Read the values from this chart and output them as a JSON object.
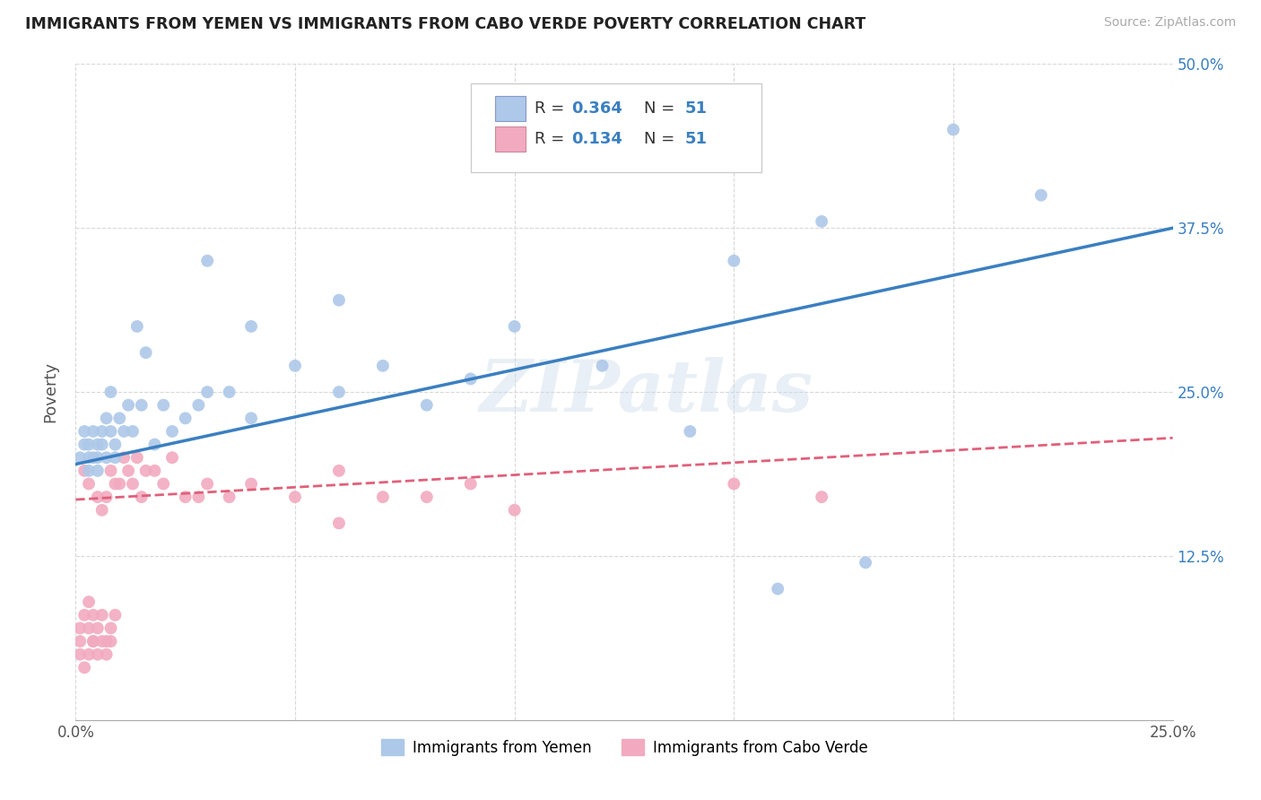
{
  "title": "IMMIGRANTS FROM YEMEN VS IMMIGRANTS FROM CABO VERDE POVERTY CORRELATION CHART",
  "source": "Source: ZipAtlas.com",
  "ylabel": "Poverty",
  "xlim": [
    0.0,
    0.25
  ],
  "ylim": [
    0.0,
    0.5
  ],
  "xticks": [
    0.0,
    0.05,
    0.1,
    0.15,
    0.2,
    0.25
  ],
  "yticks": [
    0.0,
    0.125,
    0.25,
    0.375,
    0.5
  ],
  "xtick_labels": [
    "0.0%",
    "",
    "",
    "",
    "",
    "25.0%"
  ],
  "ytick_labels_right": [
    "",
    "12.5%",
    "25.0%",
    "37.5%",
    "50.0%"
  ],
  "yemen_color": "#adc8e8",
  "cabo_color": "#f2aac0",
  "yemen_line_color": "#3a7fc1",
  "cabo_line_color": "#e0607a",
  "R_yemen": 0.364,
  "R_cabo": 0.134,
  "N": 51,
  "watermark": "ZIPatlas",
  "background_color": "#ffffff",
  "grid_color": "#d8d8d8",
  "legend_label_yemen": "Immigrants from Yemen",
  "legend_label_cabo": "Immigrants from Cabo Verde",
  "yemen_scatter_x": [
    0.001,
    0.002,
    0.002,
    0.003,
    0.003,
    0.003,
    0.004,
    0.004,
    0.005,
    0.005,
    0.005,
    0.006,
    0.006,
    0.007,
    0.007,
    0.008,
    0.008,
    0.009,
    0.009,
    0.01,
    0.011,
    0.012,
    0.013,
    0.014,
    0.015,
    0.016,
    0.018,
    0.02,
    0.022,
    0.025,
    0.028,
    0.03,
    0.035,
    0.04,
    0.05,
    0.06,
    0.07,
    0.08,
    0.09,
    0.1,
    0.12,
    0.14,
    0.16,
    0.18,
    0.2,
    0.22,
    0.03,
    0.04,
    0.06,
    0.15,
    0.17
  ],
  "yemen_scatter_y": [
    0.2,
    0.21,
    0.22,
    0.2,
    0.19,
    0.21,
    0.2,
    0.22,
    0.2,
    0.21,
    0.19,
    0.22,
    0.21,
    0.23,
    0.2,
    0.22,
    0.25,
    0.21,
    0.2,
    0.23,
    0.22,
    0.24,
    0.22,
    0.3,
    0.24,
    0.28,
    0.21,
    0.24,
    0.22,
    0.23,
    0.24,
    0.25,
    0.25,
    0.23,
    0.27,
    0.25,
    0.27,
    0.24,
    0.26,
    0.3,
    0.27,
    0.22,
    0.1,
    0.12,
    0.45,
    0.4,
    0.35,
    0.3,
    0.32,
    0.35,
    0.38
  ],
  "cabo_scatter_x": [
    0.001,
    0.001,
    0.002,
    0.002,
    0.003,
    0.003,
    0.003,
    0.004,
    0.004,
    0.005,
    0.005,
    0.006,
    0.006,
    0.007,
    0.007,
    0.008,
    0.008,
    0.009,
    0.009,
    0.01,
    0.011,
    0.012,
    0.013,
    0.014,
    0.015,
    0.016,
    0.018,
    0.02,
    0.022,
    0.025,
    0.028,
    0.03,
    0.035,
    0.04,
    0.05,
    0.06,
    0.07,
    0.08,
    0.09,
    0.1,
    0.001,
    0.002,
    0.003,
    0.004,
    0.005,
    0.006,
    0.007,
    0.008,
    0.06,
    0.15,
    0.17
  ],
  "cabo_scatter_y": [
    0.06,
    0.07,
    0.19,
    0.08,
    0.09,
    0.07,
    0.18,
    0.06,
    0.08,
    0.17,
    0.07,
    0.08,
    0.16,
    0.17,
    0.06,
    0.19,
    0.07,
    0.18,
    0.08,
    0.18,
    0.2,
    0.19,
    0.18,
    0.2,
    0.17,
    0.19,
    0.19,
    0.18,
    0.2,
    0.17,
    0.17,
    0.18,
    0.17,
    0.18,
    0.17,
    0.15,
    0.17,
    0.17,
    0.18,
    0.16,
    0.05,
    0.04,
    0.05,
    0.06,
    0.05,
    0.06,
    0.05,
    0.06,
    0.19,
    0.18,
    0.17
  ],
  "yemen_trend_x0": 0.0,
  "yemen_trend_y0": 0.195,
  "yemen_trend_x1": 0.25,
  "yemen_trend_y1": 0.375,
  "cabo_trend_x0": 0.0,
  "cabo_trend_y0": 0.168,
  "cabo_trend_x1": 0.25,
  "cabo_trend_y1": 0.215
}
